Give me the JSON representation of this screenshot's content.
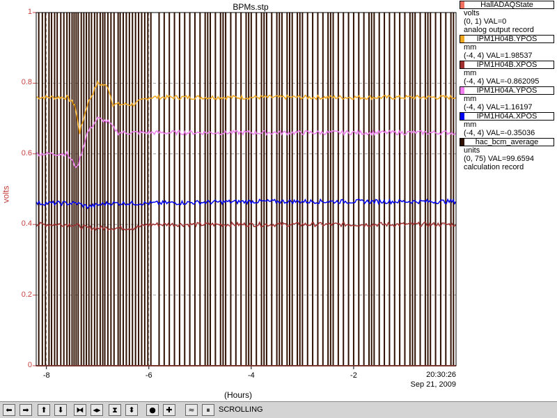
{
  "chart_data": {
    "type": "line",
    "title": "BPMs.stp",
    "xlabel": "(Hours)",
    "ylabel": "volts",
    "xlim": [
      -8.2,
      0
    ],
    "ylim": [
      0,
      1
    ],
    "x_ticks": [
      "-8",
      "-6",
      "-4",
      "-2"
    ],
    "x_tick_values": [
      -8,
      -6,
      -4,
      -2
    ],
    "y_ticks": [
      "0",
      "0.2",
      "0.4",
      "0.6",
      "0.8",
      "1"
    ],
    "y_tick_values": [
      0,
      0.2,
      0.4,
      0.6,
      0.8,
      1
    ],
    "end_time": "20:30:26",
    "end_date": "Sep 21, 2009",
    "grid": true,
    "legend_position": "right",
    "series": [
      {
        "name": "HallADAQState",
        "color": "#f07060",
        "values": [
          [
            -8.2,
            0.0
          ],
          [
            0,
            0.0
          ]
        ]
      },
      {
        "name": "IPM1H04B.YPOS",
        "color": "#f0a820",
        "values": [
          [
            -8.2,
            0.76
          ],
          [
            -7.6,
            0.76
          ],
          [
            -7.45,
            0.74
          ],
          [
            -7.35,
            0.66
          ],
          [
            -7.2,
            0.74
          ],
          [
            -7.0,
            0.8
          ],
          [
            -6.8,
            0.79
          ],
          [
            -6.7,
            0.74
          ],
          [
            -6.3,
            0.74
          ],
          [
            -6.0,
            0.76
          ],
          [
            -4.0,
            0.76
          ],
          [
            -2.0,
            0.76
          ],
          [
            0,
            0.76
          ]
        ]
      },
      {
        "name": "IPM1H04B.XPOS",
        "color": "#a03030",
        "values": [
          [
            -8.2,
            0.4
          ],
          [
            -7.5,
            0.4
          ],
          [
            -7.2,
            0.39
          ],
          [
            -6.8,
            0.39
          ],
          [
            -6.3,
            0.39
          ],
          [
            -6.0,
            0.4
          ],
          [
            -4.0,
            0.4
          ],
          [
            -2.0,
            0.4
          ],
          [
            0,
            0.4
          ]
        ]
      },
      {
        "name": "IPM1H04A.YPOS",
        "color": "#f080f0",
        "values": [
          [
            -8.2,
            0.6
          ],
          [
            -7.6,
            0.6
          ],
          [
            -7.4,
            0.56
          ],
          [
            -7.2,
            0.66
          ],
          [
            -7.0,
            0.7
          ],
          [
            -6.8,
            0.69
          ],
          [
            -6.6,
            0.66
          ],
          [
            -6.0,
            0.66
          ],
          [
            -4.0,
            0.66
          ],
          [
            -2.0,
            0.66
          ],
          [
            0,
            0.66
          ]
        ]
      },
      {
        "name": "IPM1H04A.XPOS",
        "color": "#0000f0",
        "values": [
          [
            -8.2,
            0.46
          ],
          [
            -7.4,
            0.46
          ],
          [
            -7.2,
            0.45
          ],
          [
            -6.8,
            0.46
          ],
          [
            -6.0,
            0.46
          ],
          [
            -4.0,
            0.465
          ],
          [
            -2.0,
            0.465
          ],
          [
            0,
            0.465
          ]
        ]
      },
      {
        "name": "hac_bcm_average",
        "color": "#301000",
        "pulses": [
          -8.15,
          -8.08,
          -8.02,
          -7.95,
          -7.9,
          -7.84,
          -7.79,
          -7.72,
          -7.66,
          -7.6,
          -7.55,
          -7.5,
          -7.46,
          -7.42,
          -7.38,
          -7.32,
          -7.27,
          -7.22,
          -7.17,
          -7.12,
          -7.06,
          -7.01,
          -6.95,
          -6.9,
          -6.86,
          -6.8,
          -6.74,
          -6.68,
          -6.6,
          -6.56,
          -6.5,
          -6.44,
          -6.38,
          -6.32,
          -6.26,
          -6.2,
          -6.14,
          -6.08,
          -6.02,
          -5.96,
          -5.8,
          -5.7,
          -5.6,
          -5.5,
          -5.4,
          -5.3,
          -5.2,
          -5.1,
          -5.0,
          -4.9,
          -4.85,
          -4.8,
          -4.7,
          -4.6,
          -4.55,
          -4.5,
          -4.4,
          -4.3,
          -4.2,
          -4.1,
          -4.05,
          -4.0,
          -3.9,
          -3.8,
          -3.75,
          -3.7,
          -3.6,
          -3.5,
          -3.45,
          -3.4,
          -3.3,
          -3.25,
          -3.2,
          -3.1,
          -3.05,
          -3.0,
          -2.9,
          -2.8,
          -2.7,
          -2.6,
          -2.5,
          -2.45,
          -2.4,
          -2.3,
          -2.2,
          -2.1,
          -2.0,
          -1.9,
          -1.8,
          -1.7,
          -1.65,
          -1.6,
          -1.5,
          -1.4,
          -1.3,
          -1.2,
          -1.1,
          -1.0,
          -0.9,
          -0.85,
          -0.8,
          -0.7,
          -0.6,
          -0.55,
          -0.5,
          -0.4,
          -0.3,
          -0.2,
          -0.1,
          -0.05
        ]
      }
    ]
  },
  "legend": [
    {
      "name": "HallADAQState",
      "color": "#f07060",
      "lines": [
        "volts",
        "(0, 1) VAL=0",
        "analog output record"
      ]
    },
    {
      "name": "IPM1H04B.YPOS",
      "color": "#f0a820",
      "lines": [
        "mm",
        "(-4, 4) VAL=1.98537"
      ]
    },
    {
      "name": "IPM1H04B.XPOS",
      "color": "#a03030",
      "lines": [
        "mm",
        "(-4, 4) VAL=-0.862095"
      ]
    },
    {
      "name": "IPM1H04A.YPOS",
      "color": "#f080f0",
      "lines": [
        "mm",
        "(-4, 4) VAL=1.16197"
      ]
    },
    {
      "name": "IPM1H04A.XPOS",
      "color": "#0000f0",
      "lines": [
        "mm",
        "(-4, 4) VAL=-0.35036"
      ]
    },
    {
      "name": "hac_bcm_average",
      "color": "#301000",
      "lines": [
        "units",
        "(0, 75) VAL=99.6594",
        "calculation record"
      ]
    }
  ],
  "toolbar": {
    "buttons": [
      {
        "icon": "arrow-left-icon",
        "glyph": "⬅"
      },
      {
        "icon": "arrow-right-icon",
        "glyph": "➡"
      },
      {
        "icon": "arrow-up-icon",
        "glyph": "⬆"
      },
      {
        "icon": "arrow-down-icon",
        "glyph": "⬇"
      },
      {
        "icon": "zoom-in-horizontal-icon",
        "glyph": "⧓"
      },
      {
        "icon": "zoom-out-horizontal-icon",
        "glyph": "◂▸"
      },
      {
        "icon": "zoom-in-vertical-icon",
        "glyph": "⧗"
      },
      {
        "icon": "zoom-out-vertical-icon",
        "glyph": "⬍"
      },
      {
        "icon": "autoscale-icon",
        "glyph": "●"
      },
      {
        "icon": "add-icon",
        "glyph": "✚"
      },
      {
        "icon": "scroll-mode-icon",
        "glyph": "≈"
      },
      {
        "icon": "pause-icon",
        "glyph": "⏸"
      }
    ],
    "status": "SCROLLING"
  }
}
